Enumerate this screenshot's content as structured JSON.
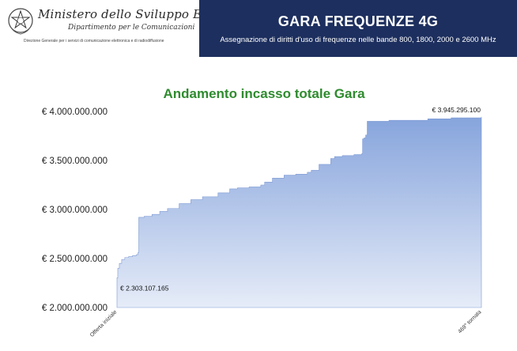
{
  "header": {
    "ministry_name": "Ministero dello Sviluppo Economico",
    "department": "Dipartimento per le Comunicazioni",
    "directorate": "Direzione Generale per i servizi di comunicazione elettronica e di radiodiffusione",
    "emblem_icon": "italian-republic-emblem-icon",
    "title": "GARA FREQUENZE 4G",
    "subtitle": "Assegnazione di diritti d'uso di frequenze nelle bande 800, 1800, 2000 e 2600 MHz",
    "banner_color": "#1d2f5e"
  },
  "chart_data": {
    "type": "area",
    "title": "Andamento incasso totale Gara",
    "title_color": "#2e8b2e",
    "fill_color": "#8aa8de",
    "xlabel": "",
    "ylabel": "",
    "x_tick_labels": [
      "Offerta iniziale",
      "469° tornata"
    ],
    "x_range": [
      0,
      469
    ],
    "ylim": [
      2000000000,
      4000000000
    ],
    "y_ticks": [
      2000000000,
      2500000000,
      3000000000,
      3500000000,
      4000000000
    ],
    "y_tick_labels": [
      "€ 2.000.000.000",
      "€ 2.500.000.000",
      "€ 3.000.000.000",
      "€ 3.500.000.000",
      "€ 4.000.000.000"
    ],
    "grid": false,
    "annotations": [
      {
        "text": "€ 2.303.107.165",
        "x": 0,
        "y": 2303107165
      },
      {
        "text": "€ 3.945.295.100",
        "x": 469,
        "y": 3945295100
      }
    ],
    "series": [
      {
        "x": [
          0,
          1,
          3,
          6,
          10,
          15,
          20,
          25,
          27,
          28,
          35,
          45,
          55,
          65,
          80,
          95,
          110,
          130,
          145,
          155,
          170,
          185,
          190,
          200,
          215,
          230,
          245,
          250,
          260,
          275,
          280,
          290,
          305,
          315,
          316,
          318,
          320,
          322,
          350,
          400,
          430,
          469
        ],
        "y": [
          2303107165,
          2400000000,
          2450000000,
          2490000000,
          2510000000,
          2520000000,
          2530000000,
          2540000000,
          2560000000,
          2920000000,
          2930000000,
          2950000000,
          2980000000,
          3010000000,
          3060000000,
          3100000000,
          3130000000,
          3170000000,
          3210000000,
          3220000000,
          3230000000,
          3250000000,
          3280000000,
          3320000000,
          3350000000,
          3360000000,
          3380000000,
          3400000000,
          3460000000,
          3520000000,
          3540000000,
          3550000000,
          3560000000,
          3570000000,
          3720000000,
          3730000000,
          3760000000,
          3900000000,
          3910000000,
          3925000000,
          3935000000,
          3945295100
        ]
      }
    ]
  }
}
